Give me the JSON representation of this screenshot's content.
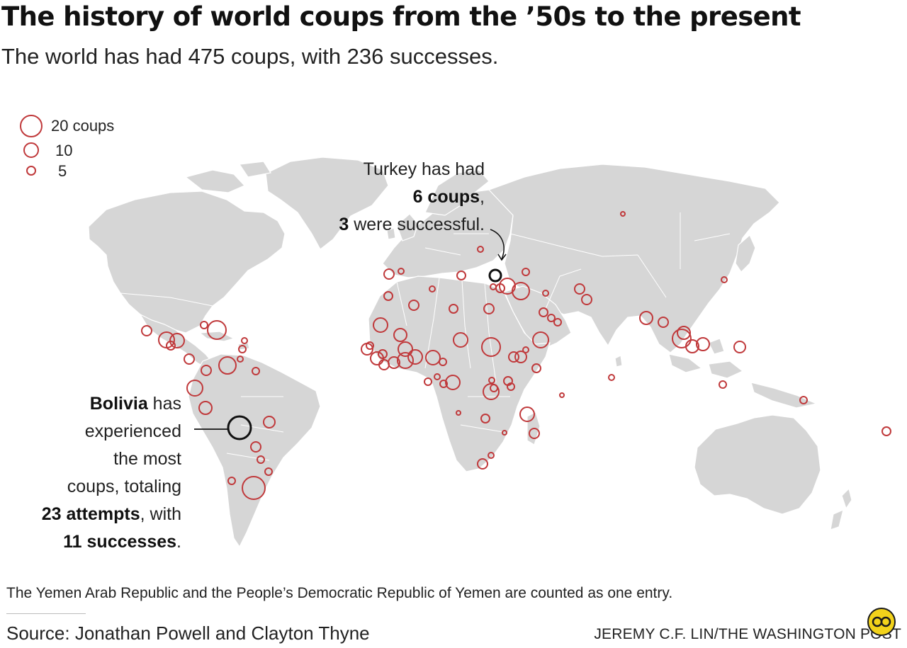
{
  "title": "The history of world coups from the ’50s to the present",
  "subtitle": "The world has had 475 coups, with 236 successes.",
  "legend": {
    "items": [
      {
        "label": "20 coups",
        "coups": 20
      },
      {
        "label": "10",
        "coups": 10
      },
      {
        "label": "5",
        "coups": 5
      }
    ]
  },
  "annotations": {
    "turkey": {
      "line1": "Turkey has had",
      "line2_bold": "6 coups",
      "line2_rest": ",",
      "line3_bold": "3",
      "line3_rest": " were successful."
    },
    "bolivia": {
      "line1_bold": "Bolivia",
      "line1_rest": " has",
      "line2": "experienced",
      "line3": "the most",
      "line4": "coups, totaling",
      "line5_bold": "23 attempts",
      "line5_rest": ", with",
      "line6_bold": "11 successes",
      "line6_rest": "."
    }
  },
  "note": "The Yemen Arab Republic and the People’s Democratic Republic of Yemen are counted as one entry.",
  "source": "Source: Jonathan Powell and Clayton Thyne",
  "credit": "JEREMY C.F. LIN/THE WASHINGTON POST",
  "colors": {
    "land": "#d6d6d6",
    "border": "#ffffff",
    "coup_circle": "#c0393b",
    "highlight_circle": "#111111",
    "background": "#ffffff"
  }
}
